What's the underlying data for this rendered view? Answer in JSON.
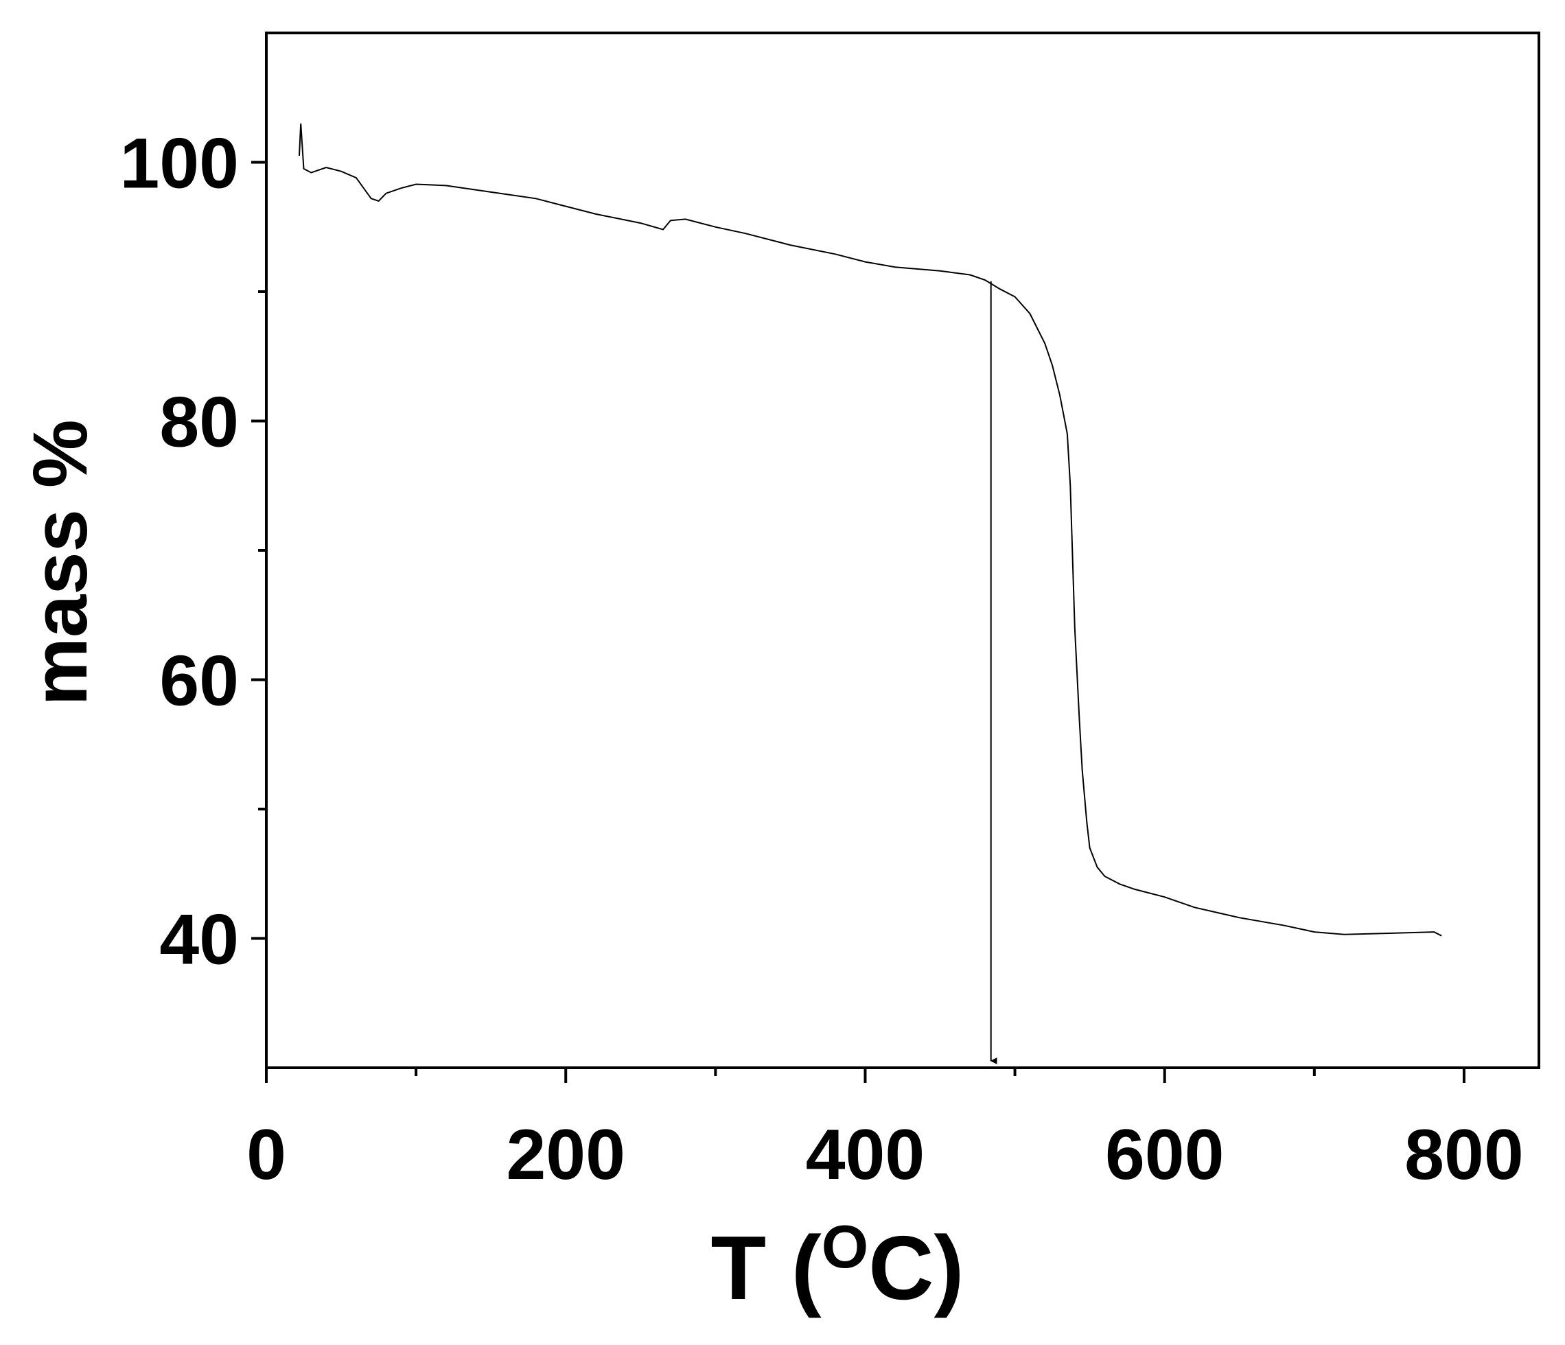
{
  "chart_data": {
    "type": "line",
    "title": "",
    "xlabel": {
      "main": "T (",
      "sup": "O",
      "unit": "C)"
    },
    "ylabel": "mass %",
    "xlim": [
      0,
      850
    ],
    "ylim": [
      30,
      110
    ],
    "xticks": [
      {
        "value": 0,
        "label": "0"
      },
      {
        "value": 200,
        "label": "200"
      },
      {
        "value": 400,
        "label": "400"
      },
      {
        "value": 600,
        "label": "600"
      },
      {
        "value": 800,
        "label": "800"
      }
    ],
    "yticks": [
      {
        "value": 40,
        "label": "40"
      },
      {
        "value": 60,
        "label": "60"
      },
      {
        "value": 80,
        "label": "80"
      },
      {
        "value": 100,
        "label": "100"
      }
    ],
    "x_minor_ticks": [
      100,
      300,
      500,
      700
    ],
    "y_minor_ticks": [
      50,
      70,
      90
    ],
    "grid": false,
    "legend": "none",
    "line_color": "#000000",
    "series": [
      {
        "x": [
          22,
          23,
          25,
          30,
          40,
          50,
          60,
          65,
          70,
          75,
          80,
          90,
          100,
          120,
          150,
          180,
          200,
          220,
          250,
          265,
          270,
          280,
          300,
          320,
          350,
          380,
          400,
          420,
          450,
          470,
          480,
          490,
          500,
          510,
          520,
          525,
          530,
          535,
          537,
          540,
          543,
          545,
          548,
          550,
          555,
          560,
          570,
          580,
          600,
          620,
          650,
          680,
          700,
          720,
          750,
          780,
          785
        ],
        "y": [
          100.5,
          103.0,
          99.5,
          99.2,
          99.6,
          99.3,
          98.8,
          98.0,
          97.2,
          97.0,
          97.6,
          98.0,
          98.3,
          98.2,
          97.7,
          97.2,
          96.6,
          96.0,
          95.3,
          94.8,
          95.5,
          95.6,
          95.0,
          94.5,
          93.6,
          92.9,
          92.3,
          91.9,
          91.6,
          91.3,
          90.9,
          90.2,
          89.6,
          88.3,
          86.0,
          84.3,
          82.0,
          79.0,
          75.0,
          64.0,
          57.0,
          53.0,
          49.0,
          47.0,
          45.5,
          44.8,
          44.2,
          43.8,
          43.2,
          42.4,
          41.6,
          41.0,
          40.5,
          40.3,
          40.4,
          40.5,
          40.2
        ]
      }
    ],
    "annotations": [
      {
        "type": "arrow",
        "x": 484,
        "y_start": 90.8,
        "y_end": 30
      }
    ]
  }
}
